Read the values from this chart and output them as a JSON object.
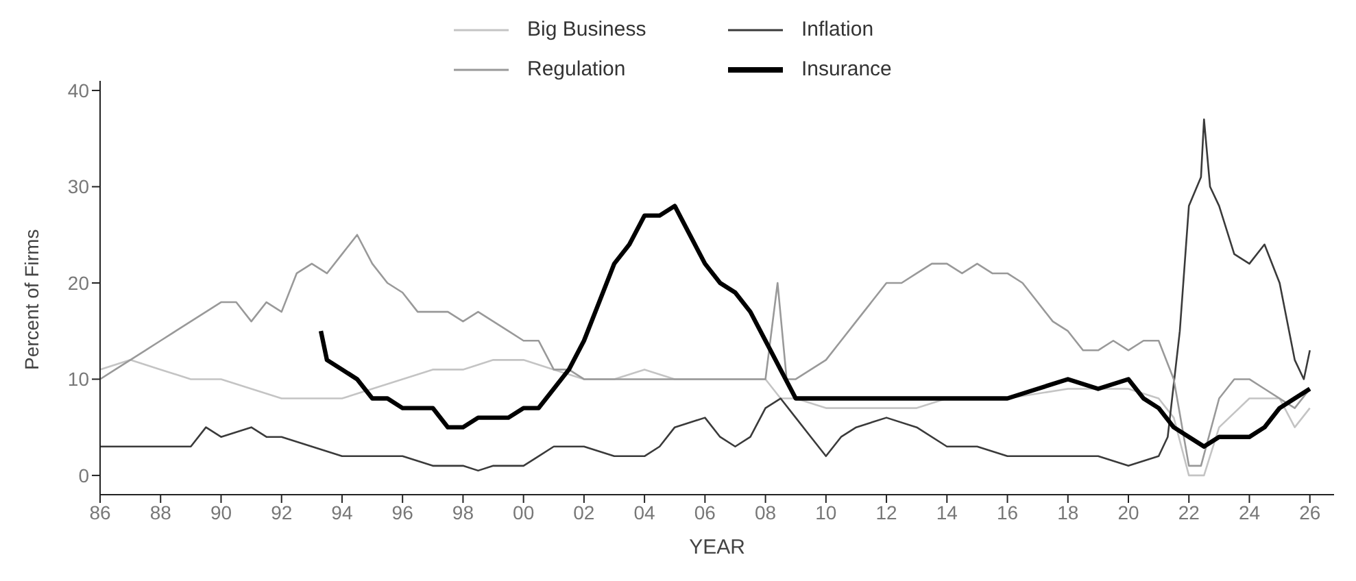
{
  "chart_data": {
    "type": "line",
    "xlabel": "YEAR",
    "ylabel": "Percent of Firms",
    "legend": "top",
    "marker": "none",
    "line_style": "solid",
    "xlim": [
      1986,
      2026.8
    ],
    "ylim": [
      -2,
      41
    ],
    "xticks": [
      {
        "value": 1986,
        "label": "86"
      },
      {
        "value": 1988,
        "label": "88"
      },
      {
        "value": 1990,
        "label": "90"
      },
      {
        "value": 1992,
        "label": "92"
      },
      {
        "value": 1994,
        "label": "94"
      },
      {
        "value": 1996,
        "label": "96"
      },
      {
        "value": 1998,
        "label": "98"
      },
      {
        "value": 2000,
        "label": "00"
      },
      {
        "value": 2002,
        "label": "02"
      },
      {
        "value": 2004,
        "label": "04"
      },
      {
        "value": 2006,
        "label": "06"
      },
      {
        "value": 2008,
        "label": "08"
      },
      {
        "value": 2010,
        "label": "10"
      },
      {
        "value": 2012,
        "label": "12"
      },
      {
        "value": 2014,
        "label": "14"
      },
      {
        "value": 2016,
        "label": "16"
      },
      {
        "value": 2018,
        "label": "18"
      },
      {
        "value": 2020,
        "label": "20"
      },
      {
        "value": 2022,
        "label": "22"
      },
      {
        "value": 2024,
        "label": "24"
      },
      {
        "value": 2026,
        "label": "26"
      }
    ],
    "yticks": [
      0,
      10,
      20,
      30,
      40
    ],
    "series": [
      {
        "name": "Big Business",
        "color": "#c4c4c4",
        "x": [
          1986,
          1987,
          1988,
          1989,
          1990,
          1991,
          1992,
          1993,
          1994,
          1995,
          1996,
          1997,
          1998,
          1999,
          2000,
          2001,
          2002,
          2003,
          2004,
          2005,
          2006,
          2007,
          2008,
          2008.5,
          2009,
          2010,
          2011,
          2012,
          2013,
          2014,
          2016,
          2018,
          2020,
          2021,
          2021.5,
          2022,
          2022.5,
          2023,
          2024,
          2025,
          2025.5,
          2026
        ],
        "values": [
          11,
          12,
          11,
          10,
          10,
          9,
          8,
          8,
          8,
          9,
          10,
          11,
          11,
          12,
          12,
          11,
          10,
          10,
          11,
          10,
          10,
          10,
          10,
          8,
          8,
          7,
          7,
          7,
          7,
          8,
          8,
          9,
          9,
          8,
          6,
          0,
          0,
          5,
          8,
          8,
          5,
          7
        ]
      },
      {
        "name": "Inflation",
        "color": "#3a3a3a",
        "x": [
          1986,
          1987,
          1988,
          1989,
          1989.5,
          1990,
          1991,
          1991.5,
          1992,
          1993,
          1994,
          1995,
          1996,
          1997,
          1998,
          1998.5,
          1999,
          2000,
          2000.5,
          2001,
          2001.5,
          2002,
          2003,
          2004,
          2004.5,
          2005,
          2006,
          2006.5,
          2007,
          2007.5,
          2008,
          2008.5,
          2009,
          2009.5,
          2010,
          2010.5,
          2011,
          2012,
          2013,
          2014,
          2015,
          2016,
          2017,
          2018,
          2019,
          2020,
          2021,
          2021.3,
          2021.7,
          2022,
          2022.4,
          2022.5,
          2022.7,
          2023,
          2023.5,
          2024,
          2024.5,
          2025,
          2025.5,
          2025.8,
          2026
        ],
        "values": [
          3,
          3,
          3,
          3,
          5,
          4,
          5,
          4,
          4,
          3,
          2,
          2,
          2,
          1,
          1,
          0.5,
          1,
          1,
          2,
          3,
          3,
          3,
          2,
          2,
          3,
          5,
          6,
          4,
          3,
          4,
          7,
          8,
          6,
          4,
          2,
          4,
          5,
          6,
          5,
          3,
          3,
          2,
          2,
          2,
          2,
          1,
          2,
          4,
          15,
          28,
          31,
          37,
          30,
          28,
          23,
          22,
          24,
          20,
          12,
          10,
          13
        ]
      },
      {
        "name": "Regulation",
        "color": "#999999",
        "x": [
          1986,
          1986.5,
          1987,
          1987.5,
          1988,
          1988.5,
          1989,
          1989.5,
          1990,
          1990.5,
          1991,
          1991.5,
          1992,
          1992.5,
          1993,
          1993.5,
          1994,
          1994.5,
          1995,
          1995.5,
          1996,
          1996.5,
          1997,
          1997.5,
          1998,
          1998.5,
          1999,
          1999.5,
          2000,
          2000.5,
          2001,
          2001.5,
          2002,
          2003,
          2004,
          2005,
          2006,
          2007,
          2008,
          2008.4,
          2008.7,
          2009,
          2010,
          2010.5,
          2011,
          2011.5,
          2012,
          2012.5,
          2013,
          2013.5,
          2014,
          2014.5,
          2015,
          2015.5,
          2016,
          2016.5,
          2017,
          2017.5,
          2018,
          2018.5,
          2019,
          2019.5,
          2020,
          2020.5,
          2021,
          2021.5,
          2022,
          2022.4,
          2023,
          2023.5,
          2024,
          2024.5,
          2025,
          2025.5,
          2026
        ],
        "values": [
          10,
          11,
          12,
          13,
          14,
          15,
          16,
          17,
          18,
          18,
          16,
          18,
          17,
          21,
          22,
          21,
          23,
          25,
          22,
          20,
          19,
          17,
          17,
          17,
          16,
          17,
          16,
          15,
          14,
          14,
          11,
          11,
          10,
          10,
          10,
          10,
          10,
          10,
          10,
          20,
          10,
          10,
          12,
          14,
          16,
          18,
          20,
          20,
          21,
          22,
          22,
          21,
          22,
          21,
          21,
          20,
          18,
          16,
          15,
          13,
          13,
          14,
          13,
          14,
          14,
          10,
          1,
          1,
          8,
          10,
          10,
          9,
          8,
          7,
          9
        ]
      },
      {
        "name": "Insurance",
        "color": "#000000",
        "x": [
          1993.3,
          1993.5,
          1994,
          1994.5,
          1995,
          1995.5,
          1996,
          1996.5,
          1997,
          1997.5,
          1998,
          1998.5,
          1999,
          1999.5,
          2000,
          2000.5,
          2001,
          2001.5,
          2002,
          2002.5,
          2003,
          2003.5,
          2004,
          2004.5,
          2005,
          2005.5,
          2006,
          2006.5,
          2007,
          2007.5,
          2008,
          2008.5,
          2009,
          2009.5,
          2010,
          2011,
          2012,
          2013,
          2014,
          2015,
          2016,
          2017,
          2018,
          2019,
          2020,
          2020.5,
          2021,
          2021.5,
          2022,
          2022.5,
          2023,
          2023.5,
          2024,
          2024.5,
          2025,
          2025.5,
          2026
        ],
        "values": [
          15,
          12,
          11,
          10,
          8,
          8,
          7,
          7,
          7,
          5,
          5,
          6,
          6,
          6,
          7,
          7,
          9,
          11,
          14,
          18,
          22,
          24,
          27,
          27,
          28,
          25,
          22,
          20,
          19,
          17,
          14,
          11,
          8,
          8,
          8,
          8,
          8,
          8,
          8,
          8,
          8,
          9,
          10,
          9,
          10,
          8,
          7,
          5,
          4,
          3,
          4,
          4,
          4,
          5,
          7,
          8,
          9
        ]
      }
    ]
  }
}
